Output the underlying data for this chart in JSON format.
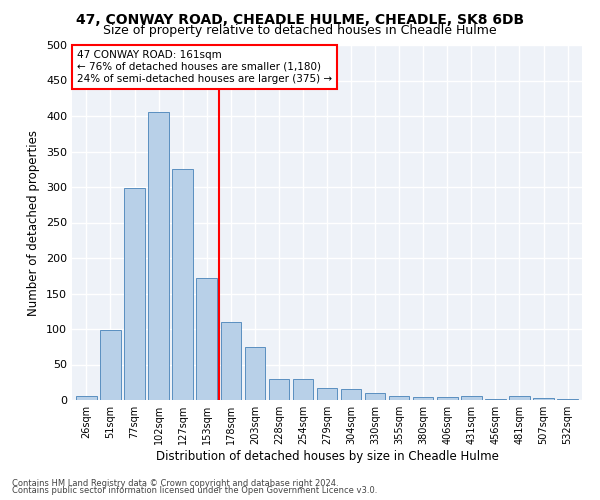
{
  "title1": "47, CONWAY ROAD, CHEADLE HULME, CHEADLE, SK8 6DB",
  "title2": "Size of property relative to detached houses in Cheadle Hulme",
  "xlabel": "Distribution of detached houses by size in Cheadle Hulme",
  "ylabel": "Number of detached properties",
  "categories": [
    "26sqm",
    "51sqm",
    "77sqm",
    "102sqm",
    "127sqm",
    "153sqm",
    "178sqm",
    "203sqm",
    "228sqm",
    "254sqm",
    "279sqm",
    "304sqm",
    "330sqm",
    "355sqm",
    "380sqm",
    "406sqm",
    "431sqm",
    "456sqm",
    "481sqm",
    "507sqm",
    "532sqm"
  ],
  "values": [
    5,
    98,
    299,
    406,
    325,
    172,
    110,
    75,
    30,
    30,
    17,
    15,
    10,
    5,
    4,
    4,
    6,
    1,
    5,
    3,
    2
  ],
  "bar_color": "#b8d0e8",
  "bar_edge_color": "#5a8fc0",
  "annotation_title": "47 CONWAY ROAD: 161sqm",
  "annotation_line1": "← 76% of detached houses are smaller (1,180)",
  "annotation_line2": "24% of semi-detached houses are larger (375) →",
  "annotation_box_color": "white",
  "annotation_box_edge": "red",
  "vline_color": "red",
  "vline_pos": 5.5,
  "ylim": [
    0,
    500
  ],
  "yticks": [
    0,
    50,
    100,
    150,
    200,
    250,
    300,
    350,
    400,
    450,
    500
  ],
  "bg_color": "#eef2f8",
  "grid_color": "white",
  "footer1": "Contains HM Land Registry data © Crown copyright and database right 2024.",
  "footer2": "Contains public sector information licensed under the Open Government Licence v3.0.",
  "title1_fontsize": 10,
  "title2_fontsize": 9,
  "bar_width": 0.85
}
